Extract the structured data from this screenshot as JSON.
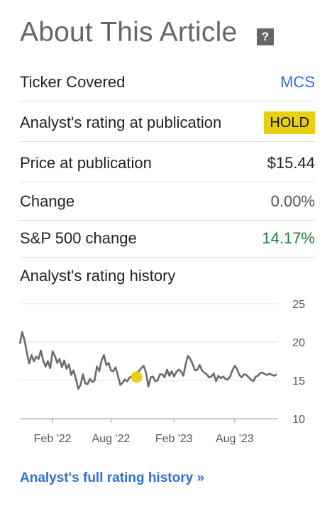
{
  "title": "About This Article",
  "help_icon": {
    "glyph": "?",
    "icon": "question-icon"
  },
  "rows": {
    "ticker": {
      "label": "Ticker Covered",
      "value": "MCS"
    },
    "rating": {
      "label": "Analyst's rating at publication",
      "value": "HOLD"
    },
    "price": {
      "label": "Price at publication",
      "value": "$15.44"
    },
    "change": {
      "label": "Change",
      "value": "0.00%"
    },
    "sp500": {
      "label": "S&P 500 change",
      "value": "14.17%"
    }
  },
  "colors": {
    "link": "#2e6fd6",
    "hold_badge": "#e8cf12",
    "positive": "#1e7d3c",
    "price_line": "#6b6b6b",
    "marker": "#e8cf12"
  },
  "history": {
    "title": "Analyst's rating history",
    "full_history_link": "Analyst's full rating history »"
  },
  "chart_data": {
    "type": "line",
    "title": "",
    "xlabel": "",
    "ylabel": "",
    "x_ticks": [
      "Feb '22",
      "Aug '22",
      "Feb '23",
      "Aug '23"
    ],
    "y_ticks": [
      25,
      20,
      15,
      10
    ],
    "ylim": [
      10,
      25
    ],
    "xlim": [
      "2021-11-01",
      "2023-12-15"
    ],
    "grid": "horizontal",
    "series": [
      {
        "x": [
          "2021-11-01",
          "2021-11-08",
          "2021-11-15",
          "2021-11-22",
          "2021-11-29",
          "2021-12-06",
          "2021-12-13",
          "2021-12-20",
          "2021-12-27",
          "2022-01-03",
          "2022-01-10",
          "2022-01-17",
          "2022-01-24",
          "2022-01-31",
          "2022-02-07",
          "2022-02-14",
          "2022-02-21",
          "2022-02-28",
          "2022-03-07",
          "2022-03-14",
          "2022-03-21",
          "2022-03-28",
          "2022-04-04",
          "2022-04-11",
          "2022-04-18",
          "2022-04-25",
          "2022-05-02",
          "2022-05-09",
          "2022-05-16",
          "2022-05-23",
          "2022-05-30",
          "2022-06-06",
          "2022-06-13",
          "2022-06-20",
          "2022-06-27",
          "2022-07-04",
          "2022-07-11",
          "2022-07-18",
          "2022-07-25",
          "2022-08-01",
          "2022-08-08",
          "2022-08-15",
          "2022-08-22",
          "2022-08-29",
          "2022-09-05",
          "2022-09-12",
          "2022-09-19",
          "2022-09-26",
          "2022-10-03",
          "2022-10-10",
          "2022-10-17",
          "2022-10-24",
          "2022-10-31",
          "2022-11-07",
          "2022-11-14",
          "2022-11-21",
          "2022-11-28",
          "2022-12-05",
          "2022-12-12",
          "2022-12-19",
          "2022-12-26",
          "2023-01-02",
          "2023-01-09",
          "2023-01-16",
          "2023-01-23",
          "2023-01-30",
          "2023-02-06",
          "2023-02-13",
          "2023-02-20",
          "2023-02-27",
          "2023-03-06",
          "2023-03-13",
          "2023-03-20",
          "2023-03-27",
          "2023-04-03",
          "2023-04-10",
          "2023-04-17",
          "2023-04-24",
          "2023-05-01",
          "2023-05-08",
          "2023-05-15",
          "2023-05-22",
          "2023-05-29",
          "2023-06-05",
          "2023-06-12",
          "2023-06-19",
          "2023-06-26",
          "2023-07-03",
          "2023-07-10",
          "2023-07-17",
          "2023-07-24",
          "2023-07-31",
          "2023-08-07",
          "2023-08-14",
          "2023-08-21",
          "2023-08-28",
          "2023-09-04",
          "2023-09-11",
          "2023-09-18",
          "2023-09-25",
          "2023-10-02",
          "2023-10-09",
          "2023-10-16",
          "2023-10-23",
          "2023-10-30",
          "2023-11-06",
          "2023-11-13",
          "2023-11-20",
          "2023-11-27",
          "2023-12-04",
          "2023-12-11"
        ],
        "values": [
          19.8,
          21.3,
          20.2,
          18.6,
          17.2,
          18.3,
          17.5,
          18.1,
          17.8,
          18.9,
          17.6,
          16.8,
          17.5,
          16.6,
          18.8,
          18.2,
          17.3,
          17.8,
          16.7,
          17.6,
          16.5,
          17.1,
          15.7,
          16.3,
          15.2,
          13.9,
          14.4,
          15.8,
          14.6,
          14.5,
          15.2,
          14.8,
          15.0,
          16.8,
          16.2,
          17.6,
          18.3,
          17.0,
          17.3,
          16.3,
          16.2,
          16.7,
          15.6,
          14.4,
          14.7,
          15.1,
          14.9,
          15.4,
          15.5,
          15.8,
          16.0,
          16.2,
          16.6,
          16.9,
          16.0,
          14.2,
          15.4,
          15.5,
          14.9,
          15.0,
          15.8,
          15.8,
          15.4,
          16.4,
          15.6,
          16.2,
          15.5,
          16.1,
          16.4,
          16.2,
          15.6,
          17.1,
          18.2,
          17.8,
          17.1,
          16.3,
          16.4,
          17.0,
          16.3,
          16.0,
          15.8,
          15.4,
          15.5,
          15.9,
          14.9,
          15.6,
          15.3,
          15.5,
          15.2,
          15.1,
          15.5,
          16.3,
          16.9,
          16.5,
          15.7,
          15.4,
          15.8,
          15.7,
          15.4,
          15.1,
          14.9,
          15.5,
          15.6,
          16.0,
          16.0,
          15.8,
          15.7,
          15.9,
          15.7,
          15.6,
          15.8
        ]
      }
    ],
    "marker": {
      "x": "2022-10-17",
      "value": 15.44,
      "label": "HOLD"
    }
  }
}
